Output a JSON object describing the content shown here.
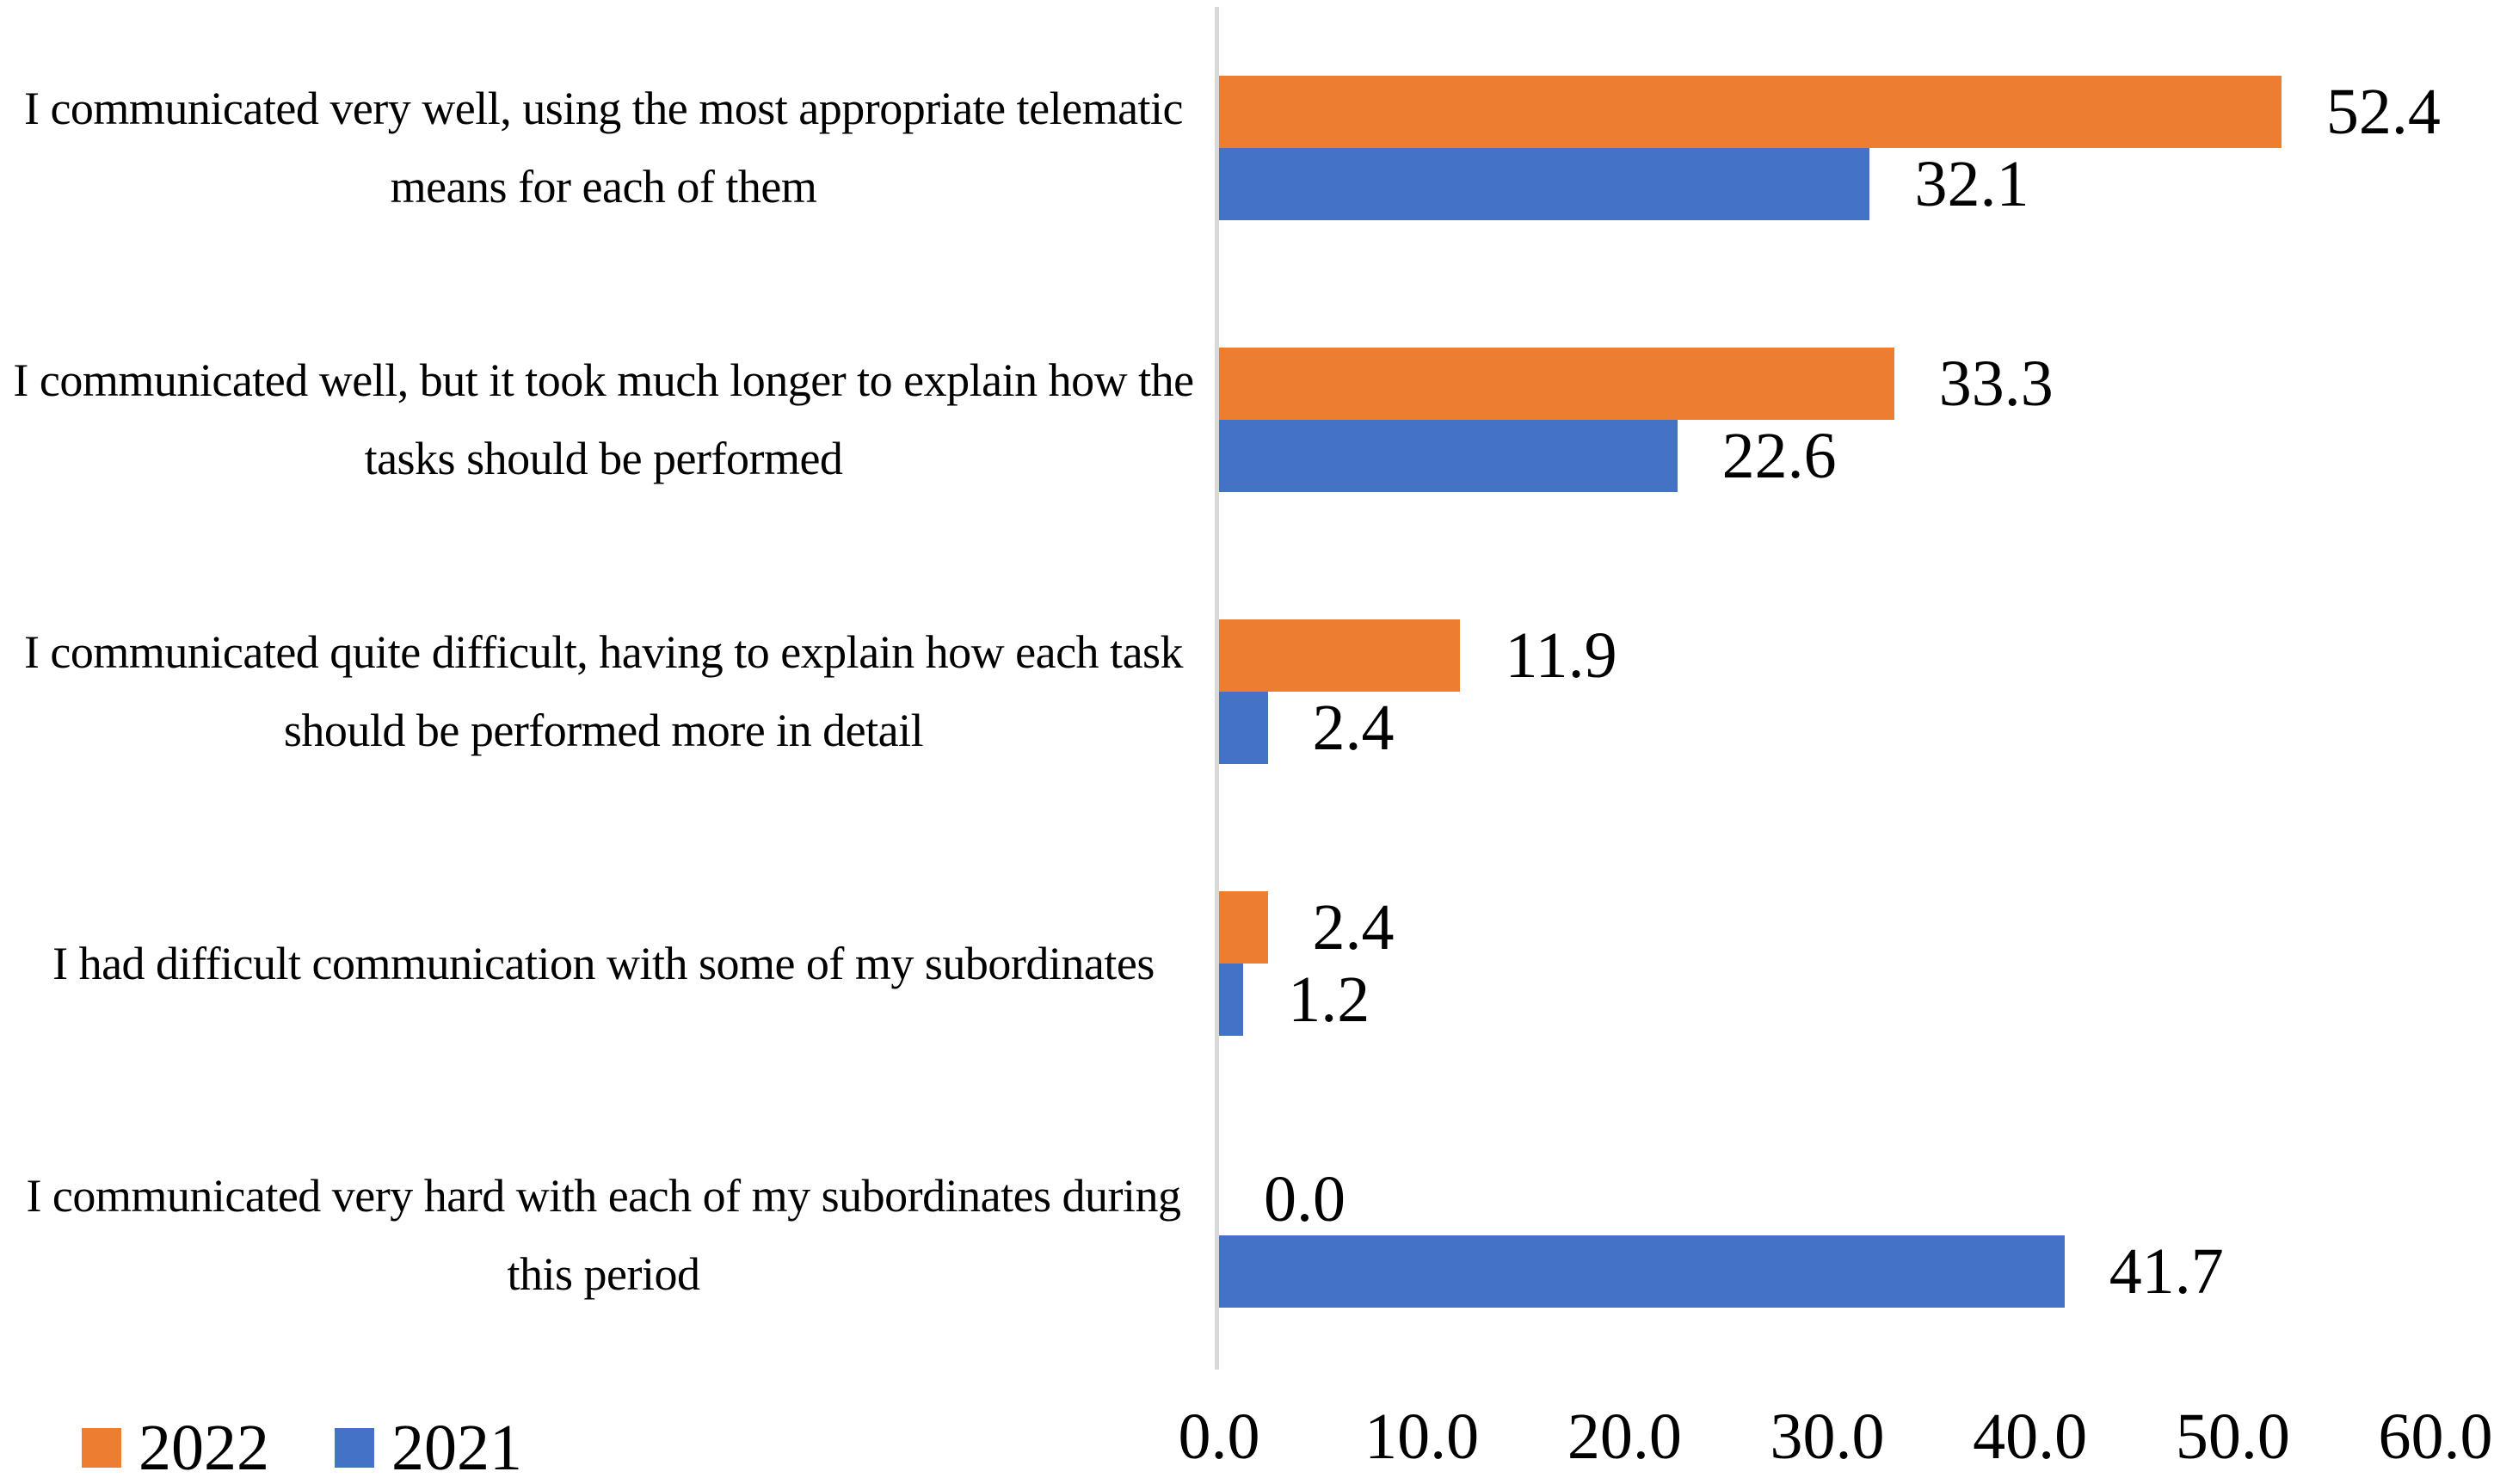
{
  "chart_data": {
    "type": "bar",
    "orientation": "horizontal",
    "title": "",
    "categories": [
      "I communicated very well, using the most appropriate telematic means for each of them",
      "I communicated well, but it took much longer to explain how the tasks should be performed",
      "I communicated quite difficult, having to explain how each task should be performed more in detail",
      "I had difficult communication with some of my subordinates",
      "I communicated very hard with each of my subordinates during this period"
    ],
    "series": [
      {
        "name": "2022",
        "color": "#ED7D31",
        "values": [
          52.4,
          33.3,
          11.9,
          2.4,
          0.0
        ]
      },
      {
        "name": "2021",
        "color": "#4472C4",
        "values": [
          32.1,
          22.6,
          2.4,
          1.2,
          41.7
        ]
      }
    ],
    "value_labels": [
      [
        "52.4",
        "32.1"
      ],
      [
        "33.3",
        "22.6"
      ],
      [
        "11.9",
        "2.4"
      ],
      [
        "2.4",
        "1.2"
      ],
      [
        "0.0",
        "41.7"
      ]
    ],
    "xlim": [
      0,
      60
    ],
    "xtick_labels": [
      "0.0",
      "10.0",
      "20.0",
      "30.0",
      "40.0",
      "50.0",
      "60.0"
    ],
    "grid": false,
    "legend_position": "bottom-left",
    "axis_line_color": "#D9D9D9",
    "value_label_color": "#000000"
  },
  "legend": {
    "items": [
      {
        "label": "2022",
        "color": "#ED7D31"
      },
      {
        "label": "2021",
        "color": "#4472C4"
      }
    ]
  }
}
